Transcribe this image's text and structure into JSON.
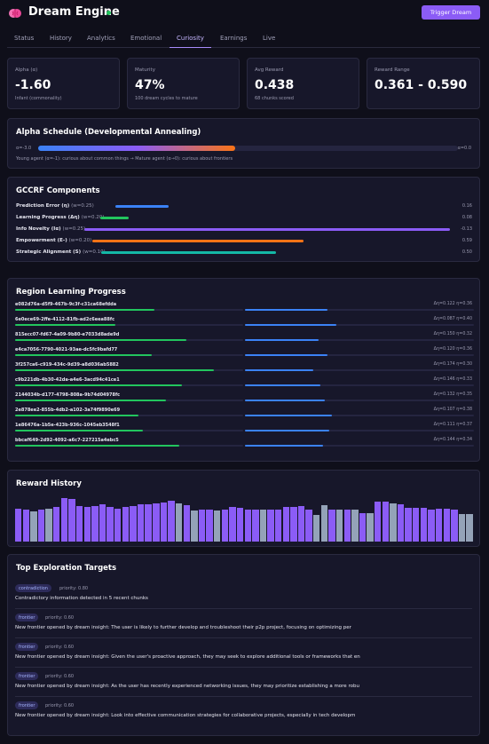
{
  "header": {
    "title": "Dream Engine",
    "trigger_label": "Trigger Dream"
  },
  "tabs": [
    "Status",
    "History",
    "Analytics",
    "Emotional",
    "Curiosity",
    "Earnings",
    "Live"
  ],
  "active_tab": "Curiosity",
  "stats": [
    {
      "label": "Alpha (α)",
      "value": "-1.60",
      "sub": "Infant (commonality)"
    },
    {
      "label": "Maturity",
      "value": "47%",
      "sub": "100 dream cycles to mature"
    },
    {
      "label": "Avg Reward",
      "value": "0.438",
      "sub": "68 chunks scored"
    },
    {
      "label": "Reward Range",
      "value": "0.361 - 0.590",
      "sub": ""
    }
  ],
  "alpha_schedule": {
    "title": "Alpha Schedule (Developmental Annealing)",
    "left_label": "α=-3.0",
    "right_label": "α=0.0",
    "progress": 0.47,
    "caption": "Young agent (α=-1): curious about common things → Mature agent (α→0): curious about frontiers"
  },
  "gccrf": {
    "title": "GCCRF Components",
    "items": [
      {
        "name": "Prediction Error (η)",
        "weight": "(w=0.25)",
        "value": "0.16",
        "fill": 0.16,
        "color": "#3b82f6"
      },
      {
        "name": "Learning Progress (Δη)",
        "weight": "(w=0.20)",
        "value": "0.08",
        "fill": 0.08,
        "color": "#22c55e"
      },
      {
        "name": "Info Novelty (Iα)",
        "weight": "(w=0.25)",
        "value": "-0.13",
        "fill": 1.0,
        "color": "#8b5cf6"
      },
      {
        "name": "Empowerment (E-)",
        "weight": "(w=0.20)",
        "value": "0.59",
        "fill": 0.59,
        "color": "#f97316"
      },
      {
        "name": "Strategic Alignment (S)",
        "weight": "(w=0.10)",
        "value": "0.50",
        "fill": 0.5,
        "color": "#14b8a6"
      }
    ]
  },
  "regions": {
    "title": "Region Learning Progress",
    "items": [
      {
        "id": "e082d76a-d5f9-467b-9c3f-c31ca68efdda",
        "stat": "Δη=0.122  η=0.36",
        "progress": 0.61,
        "eta": 0.36
      },
      {
        "id": "6e0ece69-2ffe-4112-81fb-ad2c6eea88fc",
        "stat": "Δη=0.087  η=0.40",
        "progress": 0.44,
        "eta": 0.4
      },
      {
        "id": "815ecc07-fd67-4a09-9b80-e7033d8ade9d",
        "stat": "Δη=0.150  η=0.32",
        "progress": 0.75,
        "eta": 0.32
      },
      {
        "id": "e4ca7056-7790-4021-93ae-dc5fc9bafd77",
        "stat": "Δη=0.120  η=0.36",
        "progress": 0.6,
        "eta": 0.36
      },
      {
        "id": "3f257ca6-c919-434c-9d39-a8d036ab5882",
        "stat": "Δη=0.174  η=0.30",
        "progress": 0.87,
        "eta": 0.3
      },
      {
        "id": "c9b221db-4b30-42da-a4e6-3acd94c41ce1",
        "stat": "Δη=0.146  η=0.33",
        "progress": 0.73,
        "eta": 0.33
      },
      {
        "id": "2144034b-d177-4798-808a-9b74d04978fc",
        "stat": "Δη=0.132  η=0.35",
        "progress": 0.66,
        "eta": 0.35
      },
      {
        "id": "2e878ee2-855b-4db2-a102-3a74f9890e69",
        "stat": "Δη=0.107  η=0.38",
        "progress": 0.54,
        "eta": 0.38
      },
      {
        "id": "1e86476a-1b5e-423b-936c-1045eb3548f1",
        "stat": "Δη=0.111  η=0.37",
        "progress": 0.56,
        "eta": 0.37
      },
      {
        "id": "bbcaf649-2d92-4092-a6c7-227215a4ebc5",
        "stat": "Δη=0.144  η=0.34",
        "progress": 0.72,
        "eta": 0.34
      }
    ]
  },
  "reward_history": {
    "title": "Reward History",
    "ylim": [
      0,
      0.6
    ],
    "values": [
      0.43,
      0.42,
      0.39,
      0.42,
      0.43,
      0.45,
      0.56,
      0.55,
      0.46,
      0.45,
      0.46,
      0.48,
      0.45,
      0.43,
      0.45,
      0.46,
      0.48,
      0.49,
      0.5,
      0.51,
      0.53,
      0.5,
      0.47,
      0.4,
      0.41,
      0.41,
      0.4,
      0.42,
      0.45,
      0.44,
      0.42,
      0.42,
      0.42,
      0.42,
      0.42,
      0.45,
      0.45,
      0.46,
      0.42,
      0.35,
      0.47,
      0.42,
      0.42,
      0.42,
      0.42,
      0.37,
      0.37,
      0.52,
      0.52,
      0.5,
      0.48,
      0.44,
      0.44,
      0.44,
      0.41,
      0.43,
      0.43,
      0.42,
      0.36,
      0.36
    ],
    "grey_indices": [
      2,
      4,
      21,
      23,
      26,
      32,
      39,
      40,
      42,
      44,
      46,
      49,
      58,
      59
    ],
    "colors": {
      "primary": "#8b5cf6",
      "secondary": "#94a3b8"
    }
  },
  "targets": {
    "title": "Top Exploration Targets",
    "items": [
      {
        "badge": "contradiction",
        "priority": "priority: 0.80",
        "text": "Contradictory information detected in 5 recent chunks"
      },
      {
        "badge": "frontier",
        "priority": "priority: 0.60",
        "text": "New frontier opened by dream insight: The user is likely to further develop and troubleshoot their p2p project, focusing on optimizing per"
      },
      {
        "badge": "frontier",
        "priority": "priority: 0.60",
        "text": "New frontier opened by dream insight: Given the user's proactive approach, they may seek to explore additional tools or frameworks that en"
      },
      {
        "badge": "frontier",
        "priority": "priority: 0.60",
        "text": "New frontier opened by dream insight: As the user has recently experienced networking issues, they may prioritize establishing a more robu"
      },
      {
        "badge": "frontier",
        "priority": "priority: 0.60",
        "text": "New frontier opened by dream insight: Look into effective communication strategies for collaborative projects, especially in tech developm"
      }
    ]
  }
}
